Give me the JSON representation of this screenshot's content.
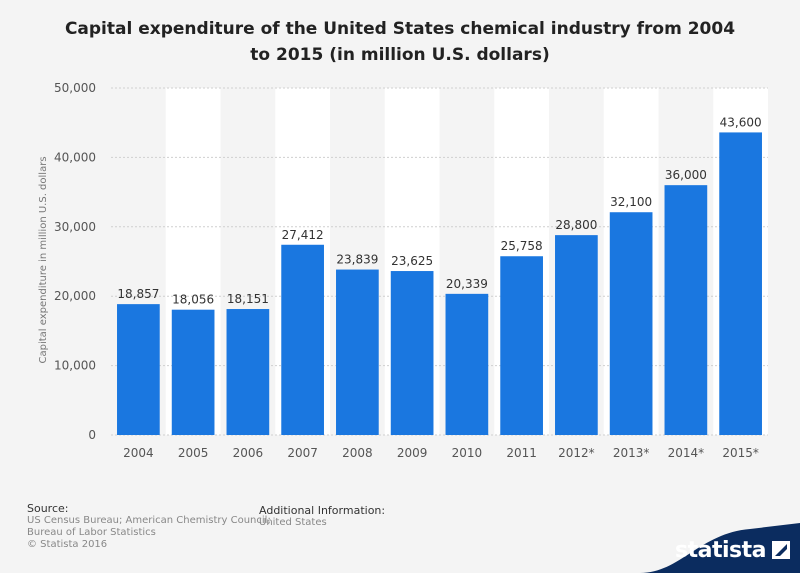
{
  "header": {
    "title_line1": "Capital expenditure of the United States chemical industry from 2004",
    "title_line2": "to 2015 (in million U.S. dollars)"
  },
  "chart_data": {
    "type": "bar",
    "title": "Capital expenditure of the United States chemical industry from 2004 to 2015 (in million U.S. dollars)",
    "categories": [
      "2004",
      "2005",
      "2006",
      "2007",
      "2008",
      "2009",
      "2010",
      "2011",
      "2012*",
      "2013*",
      "2014*",
      "2015*"
    ],
    "values": [
      18857,
      18056,
      18151,
      27412,
      23839,
      23625,
      20339,
      25758,
      28800,
      32100,
      36000,
      43600
    ],
    "value_labels": [
      "18,857",
      "18,056",
      "18,151",
      "27,412",
      "23,839",
      "23,625",
      "20,339",
      "25,758",
      "28,800",
      "32,100",
      "36,000",
      "43,600"
    ],
    "ylabel": "Capital expenditure in million U.S. dollars",
    "xlabel": "",
    "ylim": [
      0,
      50000
    ],
    "yticks": [
      0,
      10000,
      20000,
      30000,
      40000,
      50000
    ],
    "ytick_labels": [
      "0",
      "10,000",
      "20,000",
      "30,000",
      "40,000",
      "50,000"
    ],
    "bar_color": "#1a77e0",
    "grid": true
  },
  "footer": {
    "source_heading": "Source:",
    "source_line1": "US Census Bureau; American Chemistry Council;",
    "source_line2": "Bureau of Labor Statistics",
    "copyright": "© Statista 2016",
    "additional_heading": "Additional Information:",
    "additional_value": "United States",
    "brand": "statista",
    "brand_color": "#0b2c5f"
  }
}
